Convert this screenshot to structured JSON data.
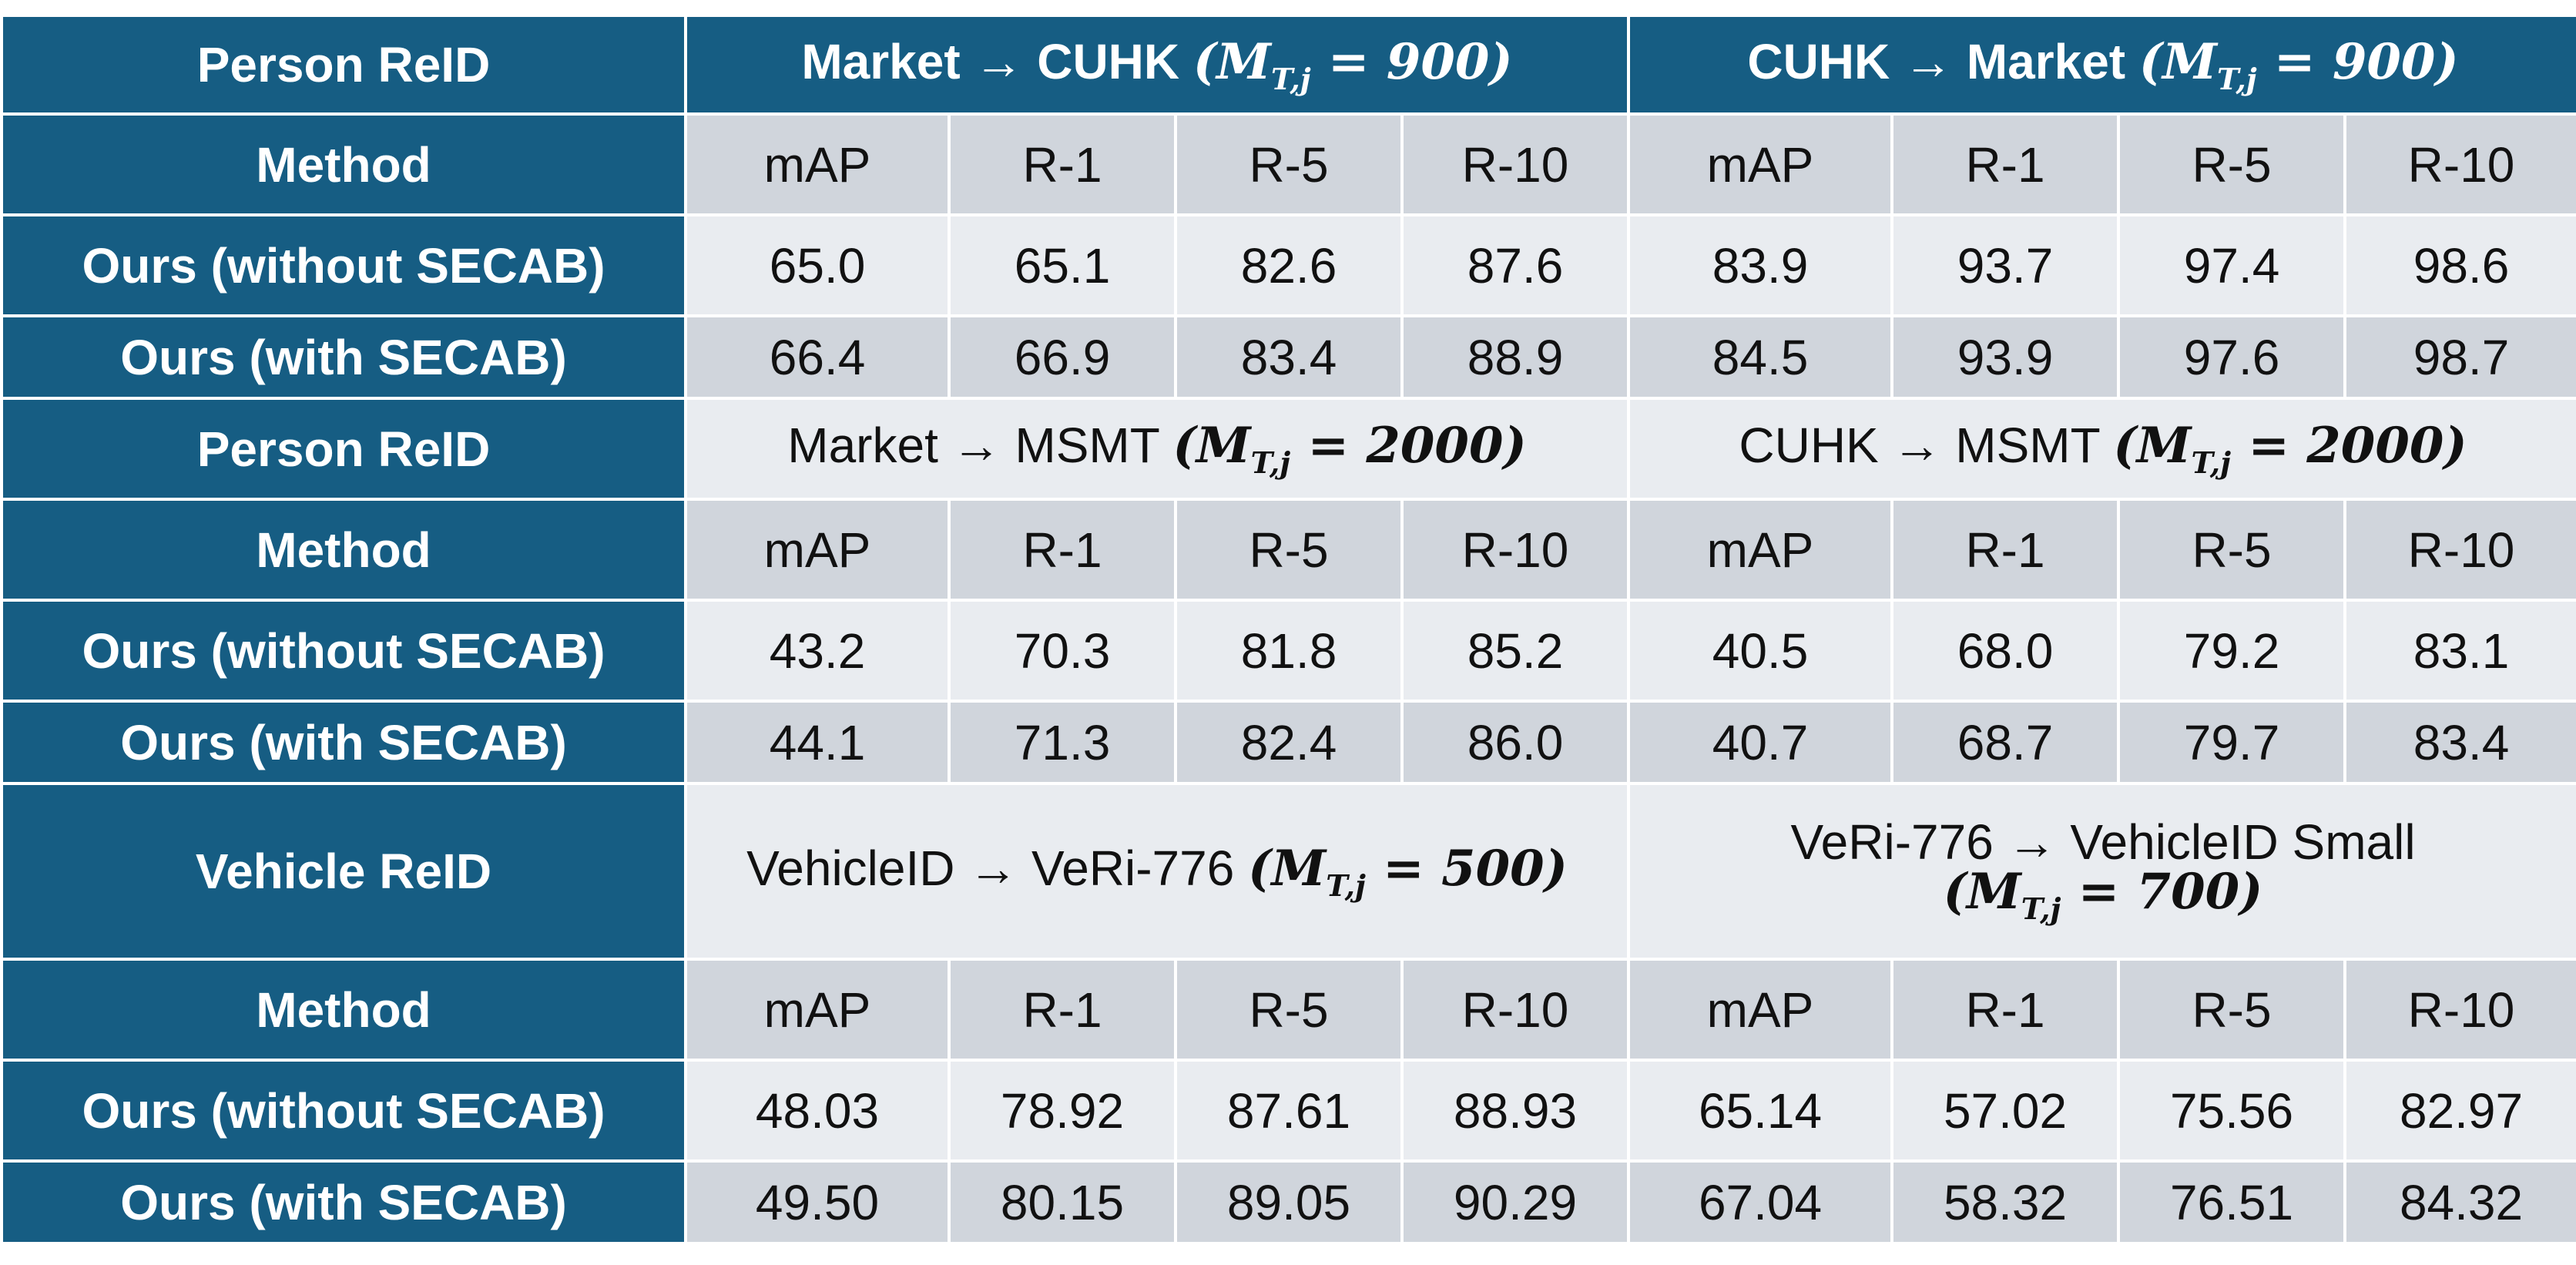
{
  "colors": {
    "header_bg": "#165D83",
    "header_text": "#FFFFFF",
    "metric_bg": "#D0D5DC",
    "value_bg": "#E9ECF0",
    "grid": "#FFFFFF"
  },
  "sections": [
    {
      "label": "Person ReID",
      "dataset_a": {
        "name": "Market → CUHK",
        "m": "900"
      },
      "dataset_b": {
        "name": "CUHK → Market",
        "m": "900"
      },
      "method_label": "Method",
      "metrics": [
        "mAP",
        "R-1",
        "R-5",
        "R-10",
        "mAP",
        "R-1",
        "R-5",
        "R-10"
      ],
      "rows": [
        {
          "method": "Ours (without SECAB)",
          "values": [
            "65.0",
            "65.1",
            "82.6",
            "87.6",
            "83.9",
            "93.7",
            "97.4",
            "98.6"
          ]
        },
        {
          "method": "Ours (with SECAB)",
          "values": [
            "66.4",
            "66.9",
            "83.4",
            "88.9",
            "84.5",
            "93.9",
            "97.6",
            "98.7"
          ]
        }
      ]
    },
    {
      "label": "Person ReID",
      "dataset_a": {
        "name": "Market → MSMT",
        "m": "2000"
      },
      "dataset_b": {
        "name": "CUHK → MSMT",
        "m": "2000"
      },
      "method_label": "Method",
      "metrics": [
        "mAP",
        "R-1",
        "R-5",
        "R-10",
        "mAP",
        "R-1",
        "R-5",
        "R-10"
      ],
      "rows": [
        {
          "method": "Ours (without SECAB)",
          "values": [
            "43.2",
            "70.3",
            "81.8",
            "85.2",
            "40.5",
            "68.0",
            "79.2",
            "83.1"
          ]
        },
        {
          "method": "Ours (with SECAB)",
          "values": [
            "44.1",
            "71.3",
            "82.4",
            "86.0",
            "40.7",
            "68.7",
            "79.7",
            "83.4"
          ]
        }
      ]
    },
    {
      "label": "Vehicle ReID",
      "dataset_a": {
        "name": "VehicleID → VeRi-776",
        "m": "500"
      },
      "dataset_b": {
        "name": "VeRi-776 → VehicleID Small",
        "m": "700"
      },
      "method_label": "Method",
      "metrics": [
        "mAP",
        "R-1",
        "R-5",
        "R-10",
        "mAP",
        "R-1",
        "R-5",
        "R-10"
      ],
      "rows": [
        {
          "method": "Ours (without SECAB)",
          "values": [
            "48.03",
            "78.92",
            "87.61",
            "88.93",
            "65.14",
            "57.02",
            "75.56",
            "82.97"
          ]
        },
        {
          "method": "Ours (with SECAB)",
          "values": [
            "49.50",
            "80.15",
            "89.05",
            "90.29",
            "67.04",
            "58.32",
            "76.51",
            "84.32"
          ]
        }
      ]
    }
  ]
}
